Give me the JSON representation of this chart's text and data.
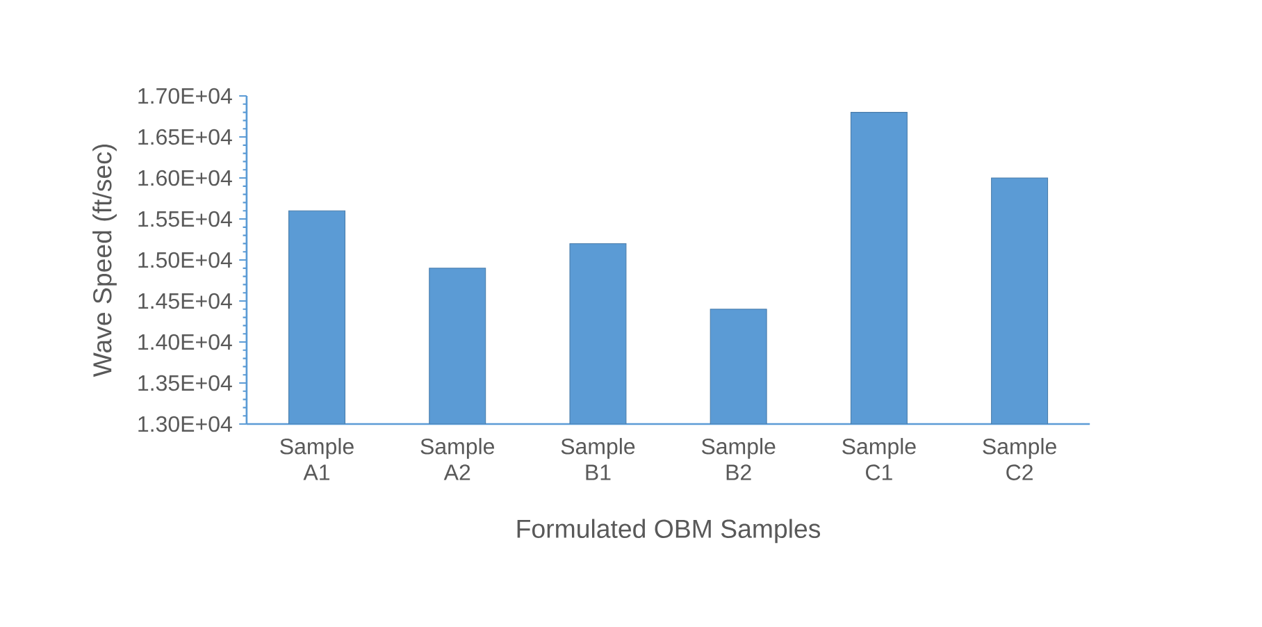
{
  "chart_data": {
    "type": "bar",
    "xlabel": "Formulated OBM Samples",
    "ylabel": "Wave Speed (ft/sec)",
    "categories": [
      "Sample A1",
      "Sample A2",
      "Sample B1",
      "Sample B2",
      "Sample C1",
      "Sample C2"
    ],
    "values": [
      15600,
      14900,
      15200,
      14400,
      16800,
      16000
    ],
    "color": "#5b9bd5",
    "ylim": [
      13000,
      17000
    ],
    "yticks": [
      {
        "value": 13000,
        "label": "1.30E+04"
      },
      {
        "value": 13500,
        "label": "1.35E+04"
      },
      {
        "value": 14000,
        "label": "1.40E+04"
      },
      {
        "value": 14500,
        "label": "1.45E+04"
      },
      {
        "value": 15000,
        "label": "1.50E+04"
      },
      {
        "value": 15500,
        "label": "1.55E+04"
      },
      {
        "value": 16000,
        "label": "1.60E+04"
      },
      {
        "value": 16500,
        "label": "1.65E+04"
      },
      {
        "value": 17000,
        "label": "1.70E+04"
      }
    ],
    "grid": false
  }
}
